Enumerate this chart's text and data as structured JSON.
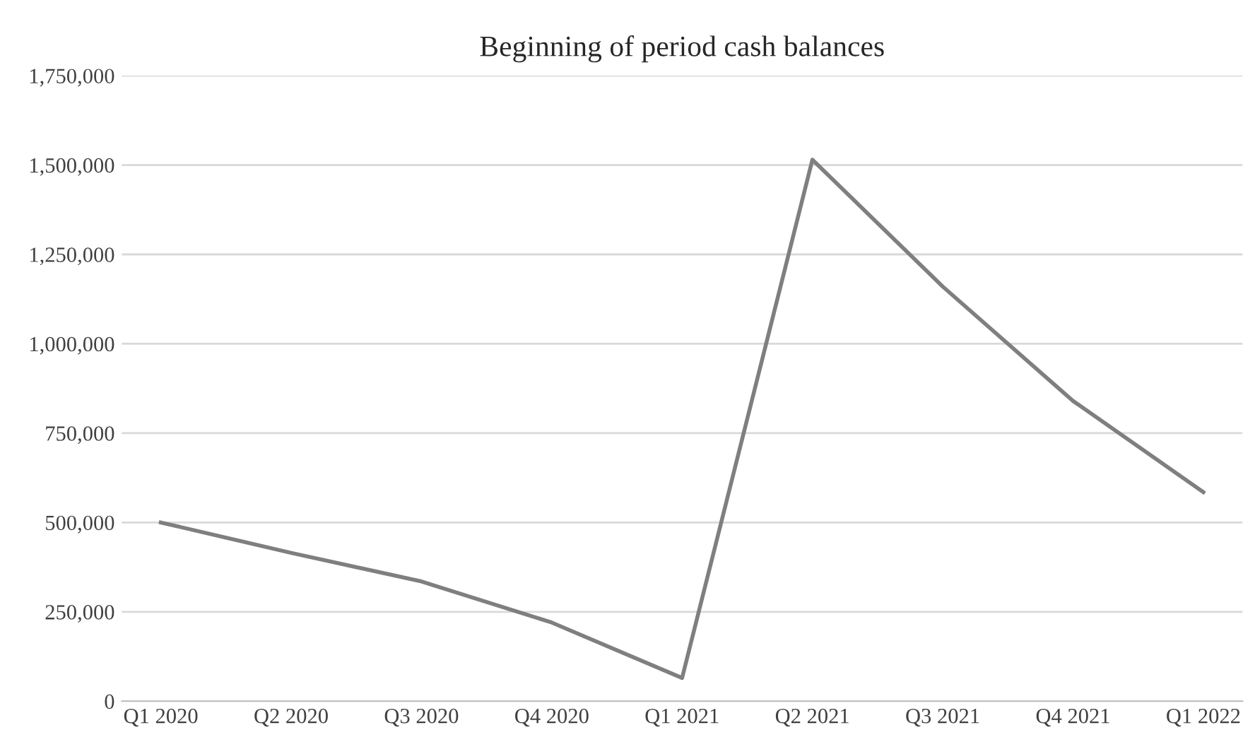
{
  "chart_data": {
    "type": "line",
    "title": "Beginning of period cash balances",
    "categories": [
      "Q1 2020",
      "Q2 2020",
      "Q3 2020",
      "Q4 2020",
      "Q1 2021",
      "Q2 2021",
      "Q3 2021",
      "Q4 2021",
      "Q1 2022"
    ],
    "series": [
      {
        "color": "#7f7f7f",
        "values": [
          500000,
          415000,
          335000,
          220000,
          65000,
          1515000,
          1160000,
          840000,
          585000
        ]
      }
    ],
    "ylim": [
      0,
      1750000
    ],
    "yticks": [
      {
        "value": 0,
        "label": "0"
      },
      {
        "value": 250000,
        "label": "250,000"
      },
      {
        "value": 500000,
        "label": "500,000"
      },
      {
        "value": 750000,
        "label": "750,000"
      },
      {
        "value": 1000000,
        "label": "1,000,000"
      },
      {
        "value": 1250000,
        "label": "1,250,000"
      },
      {
        "value": 1500000,
        "label": "1,500,000"
      },
      {
        "value": 1750000,
        "label": "1,750,000"
      }
    ],
    "grid": "y",
    "marker": "none",
    "line_style": "solid"
  }
}
